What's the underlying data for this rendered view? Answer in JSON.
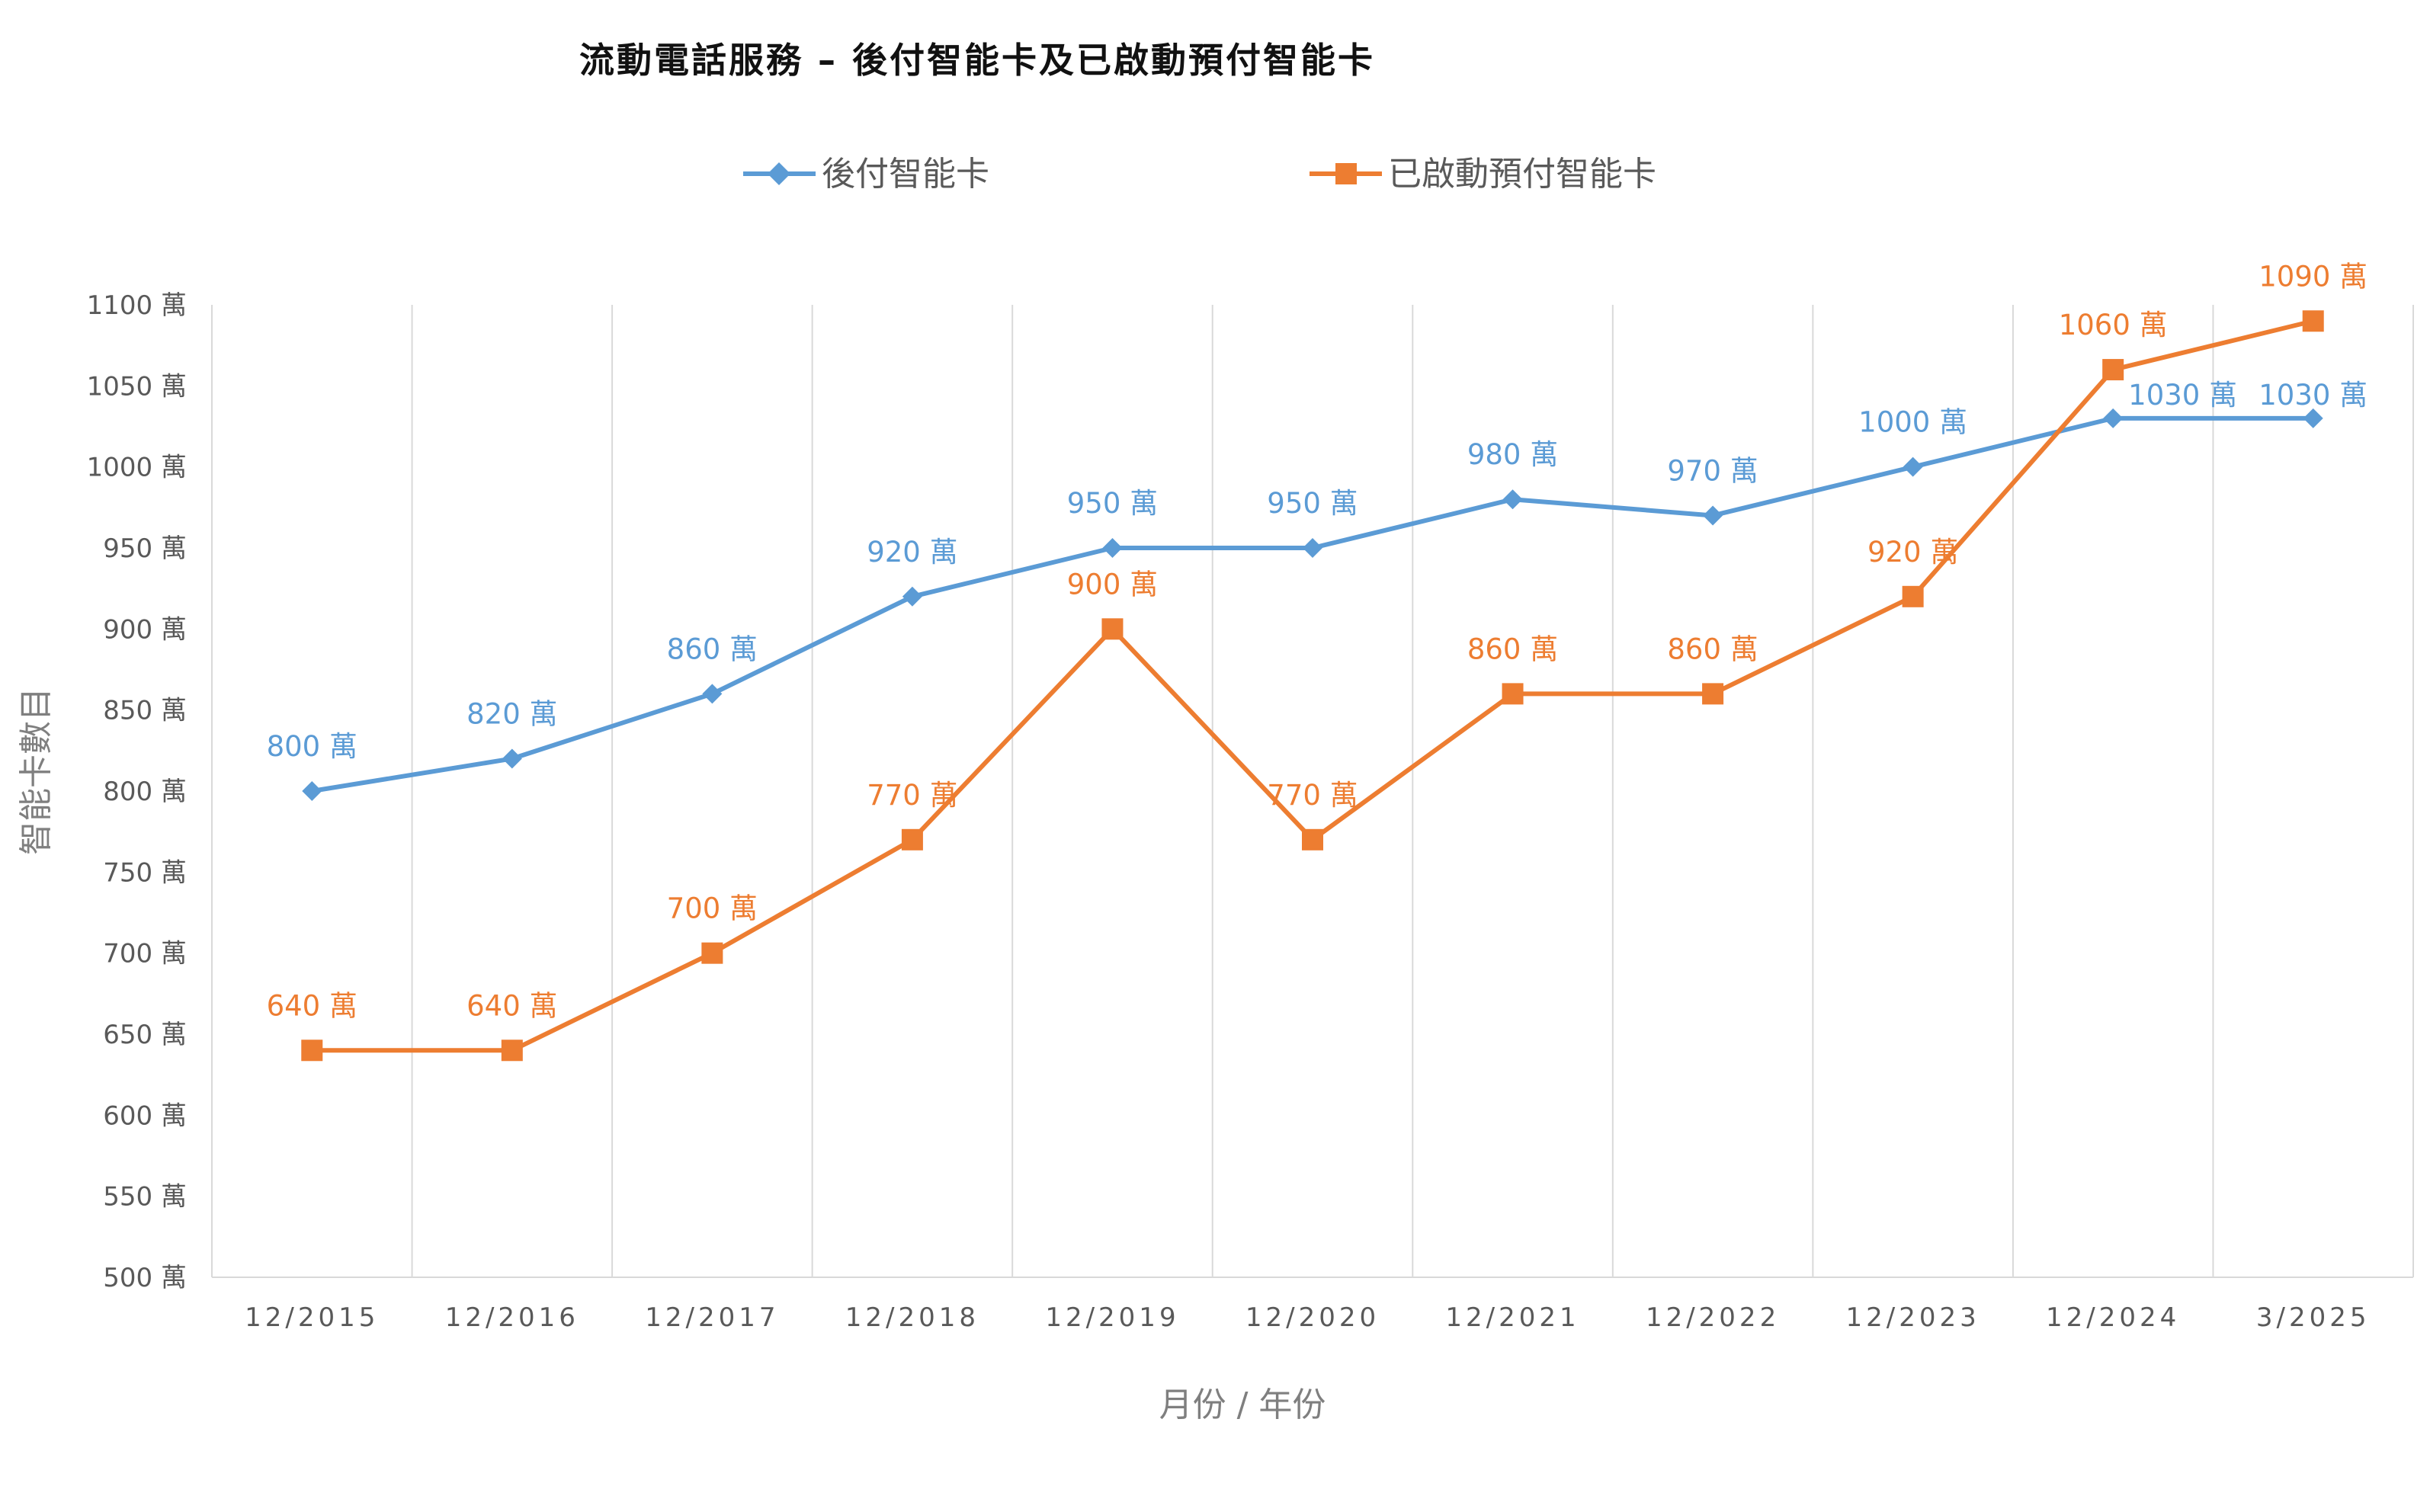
{
  "chart_data": {
    "type": "line",
    "title": "流動電話服務 – 後付智能卡及已啟動預付智能卡",
    "xlabel": "月份 / 年份",
    "ylabel": "智能卡數目",
    "categories": [
      "12/2015",
      "12/2016",
      "12/2017",
      "12/2018",
      "12/2019",
      "12/2020",
      "12/2021",
      "12/2022",
      "12/2023",
      "12/2024",
      "3/2025"
    ],
    "ylim": [
      500,
      1100
    ],
    "yticks": [
      500,
      550,
      600,
      650,
      700,
      750,
      800,
      850,
      900,
      950,
      1000,
      1050,
      1100
    ],
    "ytick_labels": [
      "500 萬",
      "550 萬",
      "600 萬",
      "650 萬",
      "700 萬",
      "750 萬",
      "800 萬",
      "850 萬",
      "900 萬",
      "950 萬",
      "1000 萬",
      "1050 萬",
      "1100 萬"
    ],
    "grid": "vertical",
    "legend": "top-center",
    "series": [
      {
        "name": "後付智能卡",
        "color": "#5b9bd5",
        "marker": "diamond",
        "values": [
          800,
          820,
          860,
          920,
          950,
          950,
          980,
          970,
          1000,
          1030,
          1030
        ],
        "labels": [
          "800 萬",
          "820 萬",
          "860 萬",
          "920 萬",
          "950 萬",
          "950 萬",
          "980 萬",
          "970 萬",
          "1000 萬",
          "1030 萬",
          "1030 萬"
        ]
      },
      {
        "name": "已啟動預付智能卡",
        "color": "#ed7d31",
        "marker": "square",
        "values": [
          640,
          640,
          700,
          770,
          900,
          770,
          860,
          860,
          920,
          1060,
          1090
        ],
        "labels": [
          "640 萬",
          "640 萬",
          "700 萬",
          "770 萬",
          "900 萬",
          "770 萬",
          "860 萬",
          "860 萬",
          "920 萬",
          "1060 萬",
          "1090 萬"
        ]
      }
    ]
  }
}
